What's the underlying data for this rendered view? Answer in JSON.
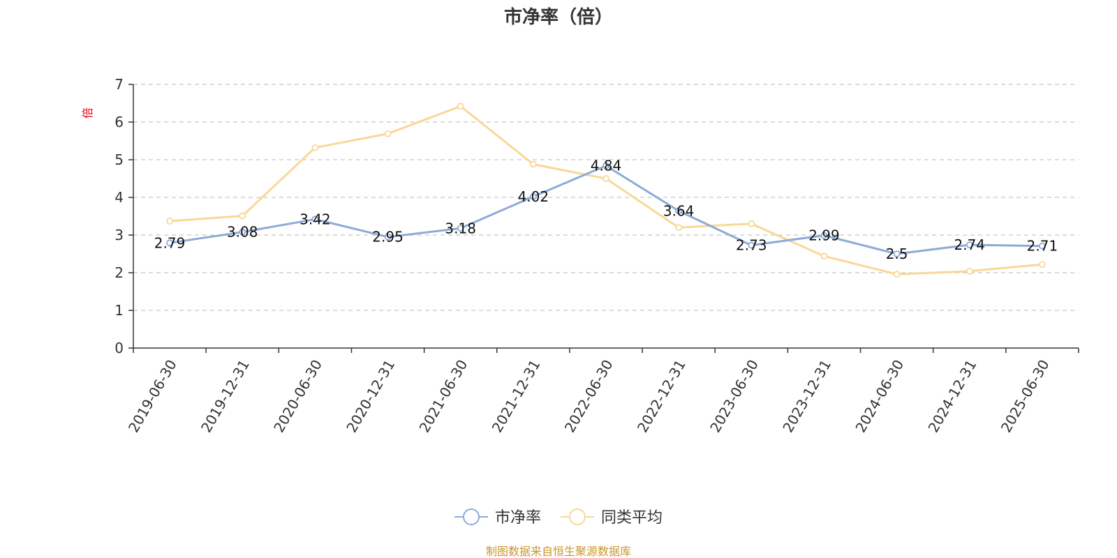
{
  "chart_data": {
    "type": "line",
    "title": "市净率（倍）",
    "ylabel": "倍",
    "ylim": [
      0,
      7
    ],
    "yticks": [
      0,
      1,
      2,
      3,
      4,
      5,
      6,
      7
    ],
    "grid": true,
    "legend_position": "bottom-center",
    "categories": [
      "2019-06-30",
      "2019-12-31",
      "2020-06-30",
      "2020-12-31",
      "2021-06-30",
      "2021-12-31",
      "2022-06-30",
      "2022-12-31",
      "2023-06-30",
      "2023-12-31",
      "2024-06-30",
      "2024-12-31",
      "2025-06-30"
    ],
    "series": [
      {
        "name": "市净率",
        "color": "#8eaad8",
        "values": [
          2.79,
          3.08,
          3.42,
          2.95,
          3.18,
          4.02,
          4.84,
          3.64,
          2.73,
          2.99,
          2.5,
          2.74,
          2.71
        ],
        "data_labels": [
          "2.79",
          "3.08",
          "3.42",
          "2.95",
          "3.18",
          "4.02",
          "4.84",
          "3.64",
          "2.73",
          "2.99",
          "2.5",
          "2.74",
          "2.71"
        ]
      },
      {
        "name": "同类平均",
        "color": "#fad797",
        "values": [
          3.37,
          3.51,
          5.32,
          5.69,
          6.42,
          4.88,
          4.5,
          3.2,
          3.3,
          2.44,
          1.96,
          2.04,
          2.22
        ]
      }
    ]
  },
  "footer": {
    "source": "制图数据来自恒生聚源数据库"
  }
}
